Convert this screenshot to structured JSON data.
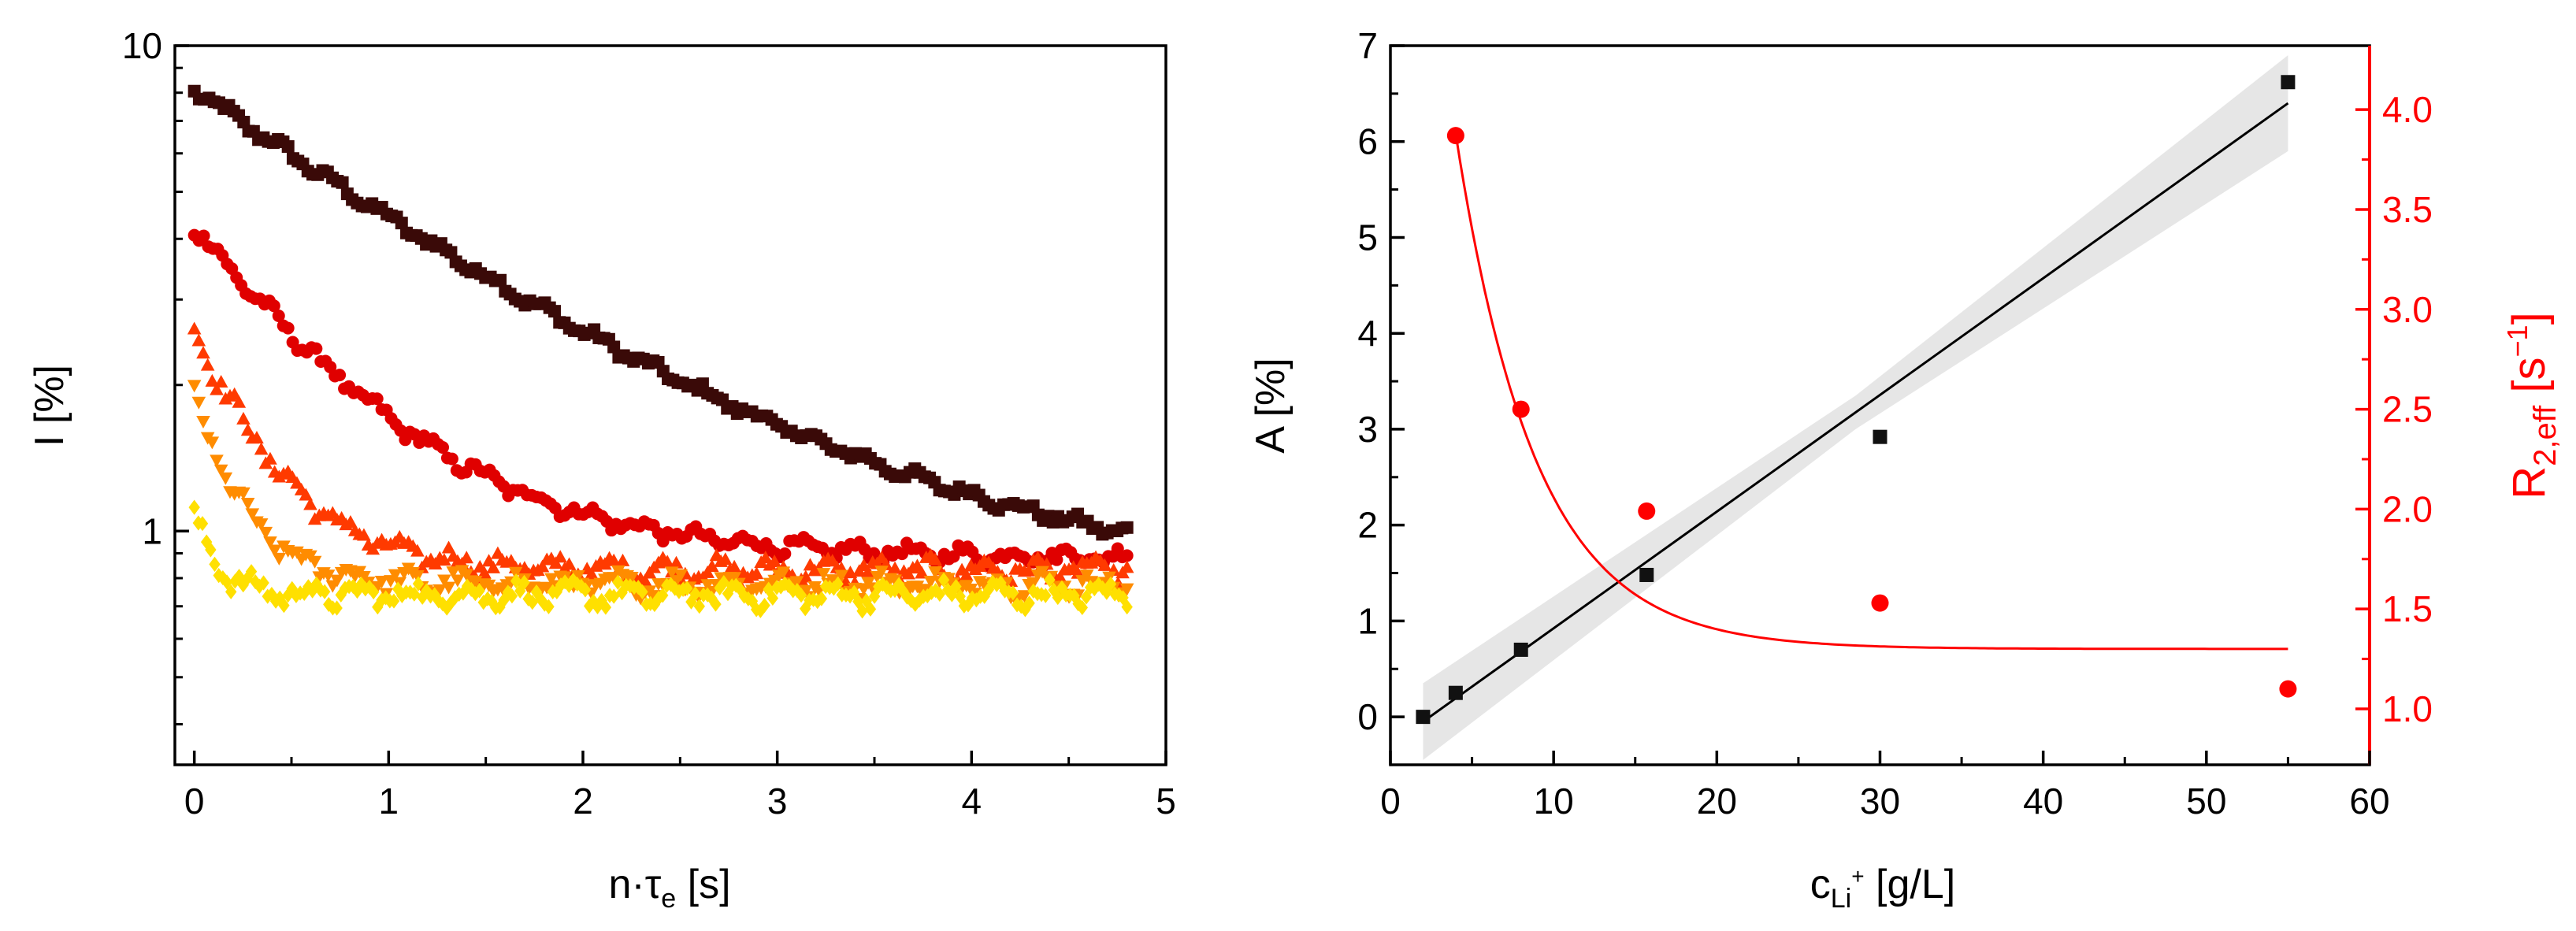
{
  "chart_data": [
    {
      "type": "scatter",
      "panel": "left",
      "xscale": "linear",
      "yscale": "log",
      "xlim": [
        -0.1,
        5
      ],
      "ylim": [
        0.33,
        10
      ],
      "xticks": [
        0,
        1,
        2,
        3,
        4,
        5
      ],
      "xtick_labels": [
        "0",
        "1",
        "2",
        "3",
        "4",
        "5"
      ],
      "ytick_labels": [
        {
          "value": 1,
          "label": "1"
        },
        {
          "value": 10,
          "label": "10"
        }
      ],
      "xlabel": {
        "prefix": "n·",
        "symbol": "τ",
        "sub": "e",
        "suffix": " [s]"
      },
      "ylabel": "I [%]",
      "series": [
        {
          "name": "darkest",
          "color": "#3a0a08",
          "marker": "square",
          "x_end": 4.8,
          "A": 7.4,
          "tau": 1.45,
          "C": 0.72,
          "noise": 0.035,
          "count": 190
        },
        {
          "name": "red",
          "color": "#e00000",
          "marker": "circle",
          "x_end": 4.8,
          "A": 3.35,
          "tau": 0.72,
          "C": 0.88,
          "noise": 0.045,
          "count": 200
        },
        {
          "name": "red-orange",
          "color": "#ff3a00",
          "marker": "triangle",
          "x_end": 4.8,
          "A": 1.75,
          "tau": 0.35,
          "C": 0.83,
          "noise": 0.06,
          "count": 210
        },
        {
          "name": "orange",
          "color": "#ff8c00",
          "marker": "triangle-down",
          "x_end": 4.8,
          "A": 1.1,
          "tau": 0.22,
          "C": 0.78,
          "noise": 0.06,
          "count": 210
        },
        {
          "name": "yellow",
          "color": "#ffe000",
          "marker": "diamond",
          "x_end": 4.8,
          "A": 0.32,
          "tau": 0.12,
          "C": 0.74,
          "noise": 0.065,
          "count": 230
        }
      ]
    },
    {
      "type": "scatter",
      "panel": "right",
      "xlim": [
        0,
        60
      ],
      "ylim_left": [
        -0.5,
        7
      ],
      "ylim_right": [
        0.72,
        4.32
      ],
      "xticks": [
        0,
        10,
        20,
        30,
        40,
        50,
        60
      ],
      "xtick_labels": [
        "0",
        "10",
        "20",
        "30",
        "40",
        "50",
        "60"
      ],
      "yticks_left": [
        0,
        1,
        2,
        3,
        4,
        5,
        6,
        7
      ],
      "ytick_labels_left": [
        "0",
        "1",
        "2",
        "3",
        "4",
        "5",
        "6",
        "7"
      ],
      "yticks_right": [
        1.0,
        1.5,
        2.0,
        2.5,
        3.0,
        3.5,
        4.0
      ],
      "ytick_labels_right": [
        "1.0",
        "1.5",
        "2.0",
        "2.5",
        "3.0",
        "3.5",
        "4.0"
      ],
      "xlabel": {
        "base": "c",
        "sub": "Li",
        "sup": "+",
        "suffix": " [g/L]"
      },
      "ylabel": "A [%]",
      "ylabel_right": {
        "base": "R",
        "sub": "2,eff",
        "open": " [s",
        "sup": "−1",
        "close": "]"
      },
      "series": [
        {
          "name": "A",
          "axis": "left",
          "color": "#111111",
          "marker": "square",
          "x": [
            2,
            4,
            8,
            15.7,
            30,
            55
          ],
          "y": [
            0.0,
            0.25,
            0.7,
            1.48,
            2.92,
            6.62
          ]
        },
        {
          "name": "R2,eff",
          "axis": "right",
          "color": "#ff0000",
          "marker": "circle",
          "x": [
            4,
            8,
            15.7,
            30,
            55
          ],
          "y": [
            3.87,
            2.5,
            1.99,
            1.53,
            1.1
          ]
        }
      ],
      "fits": [
        {
          "name": "linear fit A",
          "axis": "left",
          "color": "#000000",
          "x": [
            2,
            55
          ],
          "y": [
            -0.05,
            6.4
          ],
          "band_x": [
            2,
            28.5,
            55
          ],
          "band_lower": [
            -0.45,
            3.0,
            5.9
          ],
          "band_upper": [
            0.35,
            3.35,
            6.9
          ]
        },
        {
          "name": "exponential fit R2,eff",
          "axis": "right",
          "color": "#ff0000",
          "x_start": 4,
          "x_end": 55,
          "A": 2.58,
          "tau": 4.9,
          "x0": 4,
          "C": 1.3
        }
      ]
    }
  ]
}
